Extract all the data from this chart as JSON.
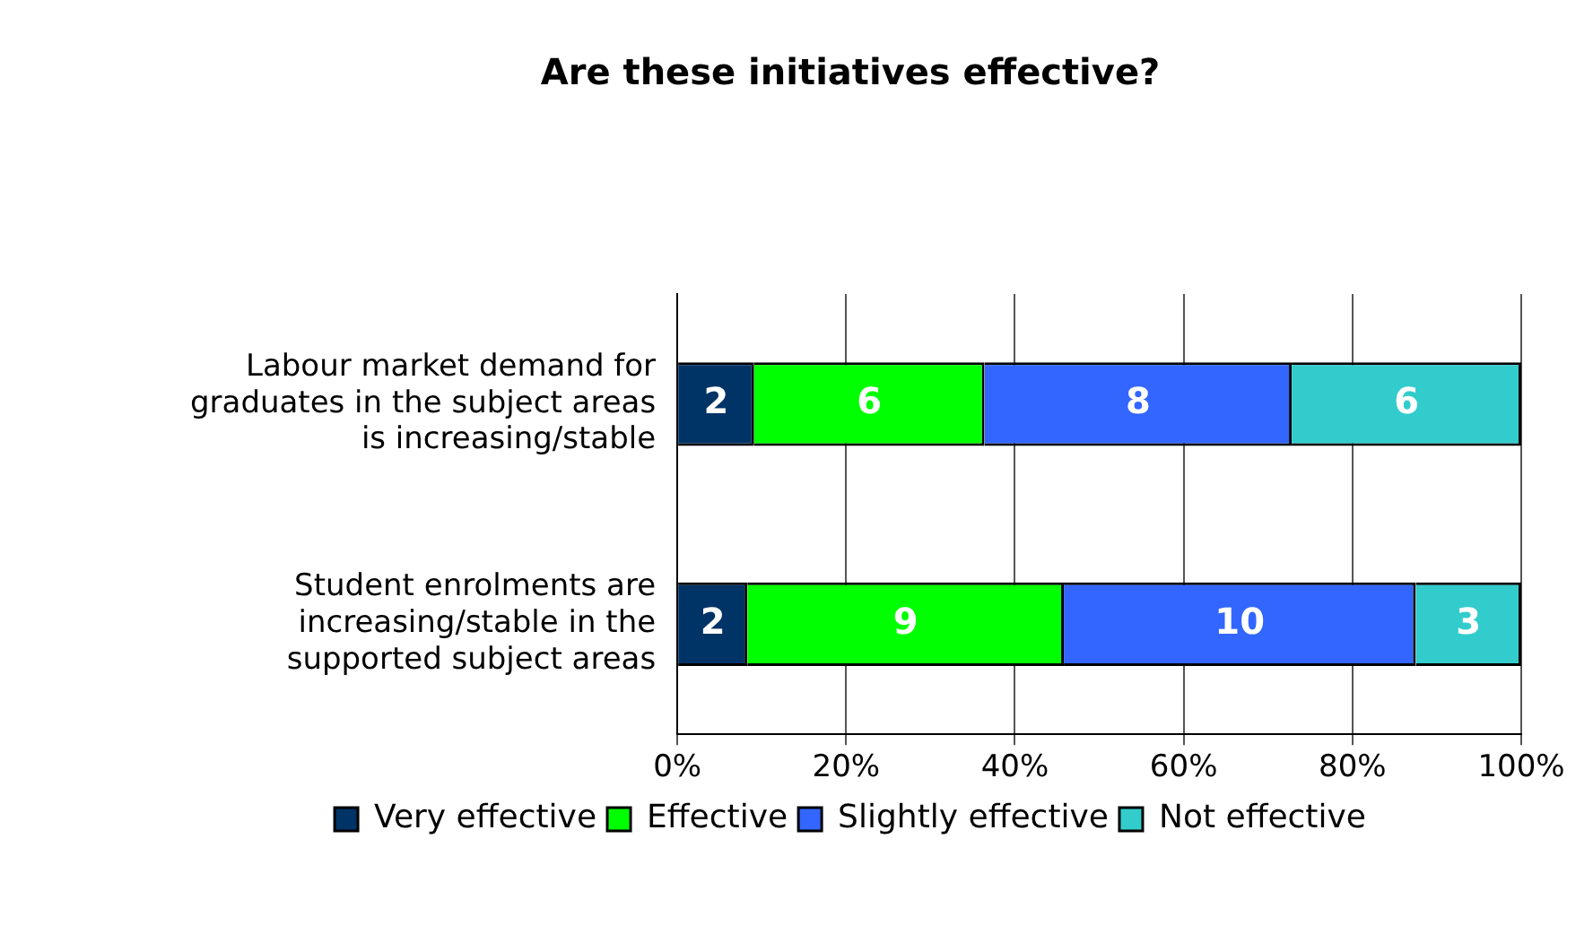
{
  "chart_data": {
    "type": "bar",
    "orientation": "horizontal",
    "stacked": true,
    "title": "Are these initiatives effective?",
    "categories": [
      "Labour market demand for graduates in the subject areas is increasing/stable",
      "Student enrolments are increasing/stable in the supported subject areas"
    ],
    "series": [
      {
        "name": "Very effective",
        "color": "#003366",
        "values": [
          9.1,
          8.3
        ]
      },
      {
        "name": "Effective",
        "color": "#00ff00",
        "values": [
          27.3,
          37.5
        ]
      },
      {
        "name": "Slightly effective",
        "color": "#3366ff",
        "values": [
          36.4,
          41.7
        ]
      },
      {
        "name": "Not effective",
        "color": "#33cccc",
        "values": [
          27.2,
          12.5
        ]
      }
    ],
    "annotations": [
      "2",
      "6",
      "8",
      "6",
      "2",
      "9",
      "10",
      "3"
    ],
    "xlim": [
      0,
      100
    ],
    "xticks": [
      {
        "value": 0,
        "label": "0%"
      },
      {
        "value": 20,
        "label": "20%"
      },
      {
        "value": 40,
        "label": "40%"
      },
      {
        "value": 60,
        "label": "60%"
      },
      {
        "value": 80,
        "label": "80%"
      },
      {
        "value": 100,
        "label": "100%"
      }
    ],
    "grid": "x",
    "legend": "bottom"
  }
}
